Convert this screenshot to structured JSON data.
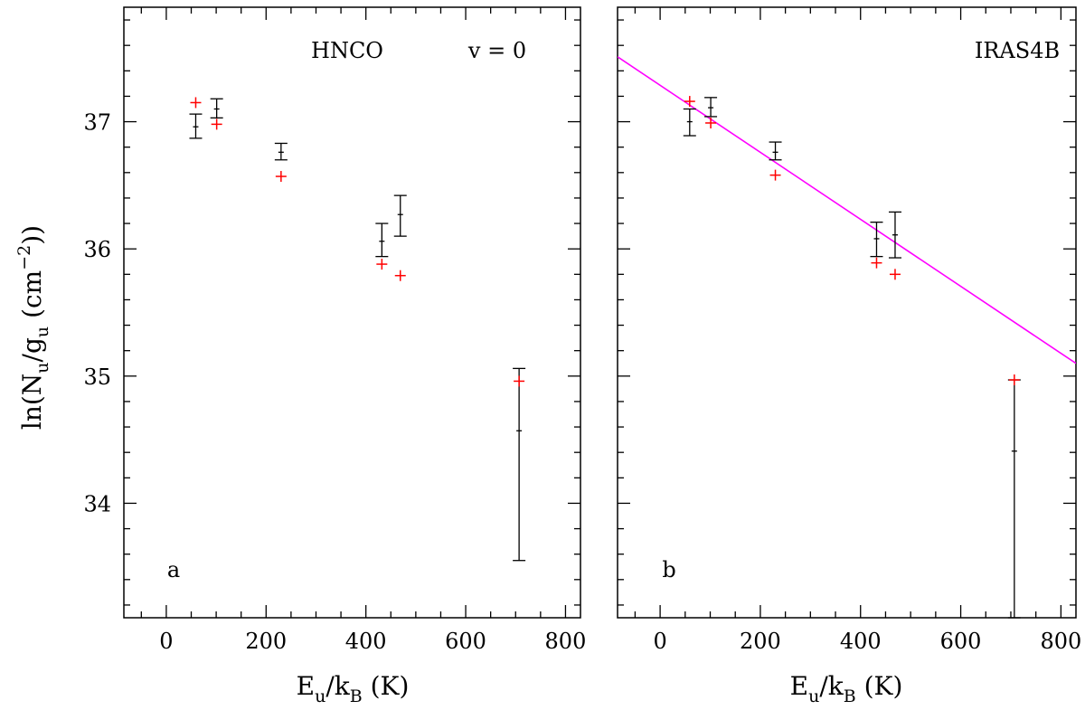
{
  "figure": {
    "ylabel": {
      "prefix": "ln(N",
      "sub1": "u",
      "mid": "/g",
      "sub2": "u",
      "unit_open": " (cm",
      "sup": "−2",
      "unit_close": "))"
    },
    "xlabel": {
      "base1": "E",
      "sub1": "u",
      "mid": "/k",
      "sub2": "B",
      "unit": " (K)"
    }
  },
  "chart_data": [
    {
      "type": "scatter",
      "panel": "a",
      "title": "HNCO",
      "annotation": "v  =  0",
      "xlim": [
        -85,
        830
      ],
      "ylim": [
        33.1,
        37.9
      ],
      "xticks": [
        0,
        200,
        400,
        600,
        800
      ],
      "yticks": [
        34,
        35,
        36,
        37
      ],
      "xtick_labels": [
        "0",
        "200",
        "400",
        "600",
        "800"
      ],
      "ytick_labels": [
        "34",
        "35",
        "36",
        "37"
      ],
      "observed": [
        {
          "x": 59,
          "y": 36.96,
          "lo": 36.87,
          "hi": 37.06
        },
        {
          "x": 101,
          "y": 37.1,
          "lo": 37.03,
          "hi": 37.18
        },
        {
          "x": 230,
          "y": 36.76,
          "lo": 36.7,
          "hi": 36.83
        },
        {
          "x": 432,
          "y": 36.06,
          "lo": 35.94,
          "hi": 36.2
        },
        {
          "x": 469,
          "y": 36.27,
          "lo": 36.1,
          "hi": 36.42
        },
        {
          "x": 707,
          "y": 34.57,
          "lo": 33.55,
          "hi": 35.06
        }
      ],
      "model": [
        {
          "x": 59,
          "y": 37.15
        },
        {
          "x": 101,
          "y": 36.98
        },
        {
          "x": 230,
          "y": 36.57
        },
        {
          "x": 432,
          "y": 35.88
        },
        {
          "x": 469,
          "y": 35.79
        },
        {
          "x": 707,
          "y": 34.96
        }
      ]
    },
    {
      "type": "scatter",
      "panel": "b",
      "title": "IRAS4B",
      "annotation": "",
      "xlim": [
        -85,
        830
      ],
      "ylim": [
        33.1,
        37.9
      ],
      "xticks": [
        0,
        200,
        400,
        600,
        800
      ],
      "yticks": [
        34,
        35,
        36,
        37
      ],
      "xtick_labels": [
        "0",
        "200",
        "400",
        "600",
        "800"
      ],
      "ytick_labels": [
        "",
        "",
        "",
        ""
      ],
      "observed": [
        {
          "x": 59,
          "y": 37.0,
          "lo": 36.89,
          "hi": 37.1
        },
        {
          "x": 101,
          "y": 37.11,
          "lo": 37.04,
          "hi": 37.19
        },
        {
          "x": 230,
          "y": 36.76,
          "lo": 36.7,
          "hi": 36.84
        },
        {
          "x": 432,
          "y": 36.08,
          "lo": 35.94,
          "hi": 36.21
        },
        {
          "x": 469,
          "y": 36.11,
          "lo": 35.93,
          "hi": 36.29
        },
        {
          "x": 707,
          "y": 34.41,
          "lo": 33.1,
          "hi": 34.97
        }
      ],
      "model": [
        {
          "x": 59,
          "y": 37.16
        },
        {
          "x": 101,
          "y": 36.99
        },
        {
          "x": 230,
          "y": 36.58
        },
        {
          "x": 432,
          "y": 35.89
        },
        {
          "x": 469,
          "y": 35.8
        },
        {
          "x": 707,
          "y": 34.97
        }
      ],
      "fit_line": {
        "x": [
          -85,
          830
        ],
        "y": [
          37.51,
          35.1
        ],
        "color": "#ff00ff"
      }
    }
  ],
  "colors": {
    "observed": "#000000",
    "model": "#ff0000",
    "fit": "#ff00ff"
  }
}
